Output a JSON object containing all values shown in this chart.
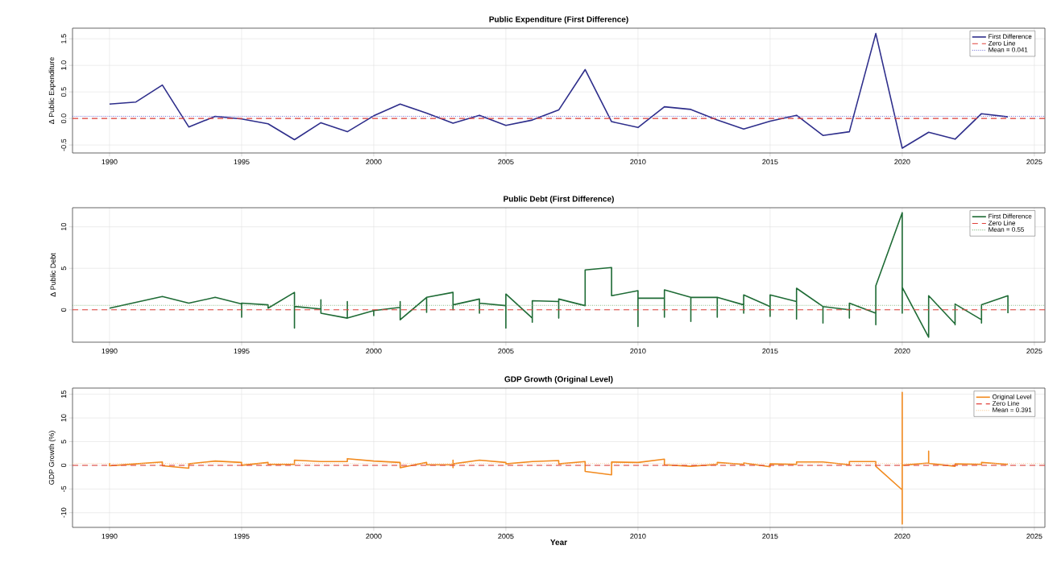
{
  "chart_data": [
    {
      "type": "line",
      "title": "Public Expenditure (First Difference)",
      "ylabel": "Δ Public Expenditure",
      "grid": true,
      "legend": "top right",
      "xlim": [
        1988.6,
        2025.4
      ],
      "ylim": [
        -0.65,
        1.7
      ],
      "xticks": [
        1990,
        1995,
        2000,
        2005,
        2010,
        2015,
        2020,
        2025
      ],
      "yticks": [
        -0.5,
        {
          "value": 0,
          "label": "0.0"
        },
        0.5,
        {
          "value": 1,
          "label": "1.0"
        },
        1.5
      ],
      "series": [
        {
          "name": "First Difference",
          "color": "#2e2e8b",
          "x": [
            1990,
            1991,
            1992,
            1993,
            1994,
            1995,
            1996,
            1997,
            1998,
            1999,
            2000,
            2001,
            2002,
            2003,
            2004,
            2005,
            2006,
            2007,
            2008,
            2009,
            2010,
            2011,
            2012,
            2013,
            2014,
            2015,
            2016,
            2017,
            2018,
            2019,
            2020,
            2021,
            2022,
            2023,
            2024
          ],
          "values": [
            0.27,
            0.31,
            0.63,
            -0.16,
            0.04,
            -0.01,
            -0.1,
            -0.4,
            -0.08,
            -0.25,
            0.05,
            0.27,
            0.1,
            -0.09,
            0.06,
            -0.13,
            -0.03,
            0.16,
            0.92,
            -0.06,
            -0.17,
            0.22,
            0.17,
            -0.03,
            -0.2,
            -0.05,
            0.06,
            -0.32,
            -0.25,
            1.6,
            -0.56,
            -0.26,
            -0.39,
            0.09,
            0.03
          ]
        }
      ],
      "ref_lines": [
        {
          "axis": "y",
          "value": 0,
          "label": "Zero Line",
          "color": "#e0403a",
          "line_style": "dashed"
        },
        {
          "axis": "y",
          "value": 0.041,
          "label": "Mean = 0.041",
          "color": "#5a5ad0",
          "line_style": "dotted"
        }
      ]
    },
    {
      "type": "line",
      "title": "Public Debt (First Difference)",
      "ylabel": "Δ Public Debt",
      "grid": true,
      "legend": "top right",
      "xlim": [
        1988.6,
        2025.4
      ],
      "ylim": [
        -3.9,
        12.3
      ],
      "xticks": [
        1990,
        1995,
        2000,
        2005,
        2010,
        2015,
        2020,
        2025
      ],
      "yticks": [
        0,
        5,
        10
      ],
      "series": [
        {
          "name": "First Difference",
          "color": "#1e6b35",
          "x": [
            1990,
            1992,
            1993,
            1994,
            1995,
            1995,
            1995,
            1996,
            1996,
            1997,
            1997,
            1997,
            1998,
            1998,
            1998,
            1999,
            1999,
            1999,
            2000,
            2000,
            2000,
            2001,
            2001,
            2001,
            2002,
            2002,
            2002,
            2003,
            2003,
            2003,
            2004,
            2004,
            2004,
            2005,
            2005,
            2005,
            2006,
            2006,
            2006,
            2007,
            2007,
            2007,
            2008,
            2008,
            2009,
            2009,
            2010,
            2010,
            2010,
            2011,
            2011,
            2011,
            2012,
            2012,
            2012,
            2013,
            2013,
            2013,
            2014,
            2014,
            2014,
            2015,
            2015,
            2015,
            2016,
            2016,
            2016,
            2017,
            2017,
            2017,
            2018,
            2018,
            2018,
            2019,
            2019,
            2019,
            2020,
            2020,
            2020,
            2021,
            2021,
            2022,
            2022,
            2022,
            2023,
            2023,
            2023,
            2024,
            2024
          ],
          "values": [
            0.2,
            1.6,
            0.8,
            1.5,
            0.7,
            -0.9,
            0.8,
            0.6,
            0.2,
            2.1,
            -2.2,
            0.4,
            0.1,
            1.2,
            -0.4,
            -1.0,
            1.0,
            -1.0,
            -0.1,
            -0.7,
            -0.1,
            0.3,
            1.0,
            -1.2,
            1.5,
            -0.3,
            1.5,
            2.1,
            0.0,
            0.6,
            1.3,
            -0.4,
            0.8,
            0.5,
            -2.2,
            1.9,
            -1.0,
            -1.5,
            1.1,
            1.0,
            -1.0,
            1.3,
            0.5,
            4.8,
            5.1,
            1.7,
            2.3,
            -2.0,
            1.4,
            1.4,
            -0.9,
            2.4,
            1.5,
            -1.4,
            1.5,
            1.5,
            -0.9,
            1.5,
            0.6,
            -0.4,
            1.8,
            0.4,
            -0.8,
            1.8,
            1.0,
            -1.1,
            2.6,
            0.4,
            -1.6,
            0.4,
            0.0,
            -1.0,
            0.8,
            -0.4,
            -1.8,
            2.9,
            11.7,
            -0.4,
            2.7,
            -3.3,
            1.7,
            -1.7,
            -1.8,
            0.7,
            -1.2,
            -1.6,
            0.6,
            1.7,
            -0.4
          ]
        }
      ],
      "ref_lines": [
        {
          "axis": "y",
          "value": 0,
          "label": "Zero Line",
          "color": "#e0403a",
          "line_style": "dashed"
        },
        {
          "axis": "y",
          "value": 0.55,
          "label": "Mean = 0.55",
          "color": "#5aa05a",
          "line_style": "dotted"
        }
      ]
    },
    {
      "type": "line",
      "title": "GDP Growth (Original Level)",
      "xlabel": "Year",
      "ylabel": "GDP Growth (%)",
      "grid": true,
      "legend": "top right",
      "xlim": [
        1988.6,
        2025.4
      ],
      "ylim": [
        -13.1,
        16.3
      ],
      "xticks": [
        1990,
        1995,
        2000,
        2005,
        2010,
        2015,
        2020,
        2025
      ],
      "yticks": [
        -10,
        -5,
        0,
        5,
        10,
        15
      ],
      "series": [
        {
          "name": "Original Level",
          "color": "#f28a1e",
          "x": [
            1990,
            1990,
            1991,
            1992,
            1992,
            1993,
            1993,
            1994,
            1995,
            1995,
            1996,
            1996,
            1997,
            1997,
            1998,
            1999,
            1999,
            2000,
            2001,
            2001,
            2002,
            2002,
            2003,
            2003,
            2003,
            2003,
            2004,
            2005,
            2005,
            2006,
            2007,
            2007,
            2008,
            2008,
            2009,
            2009,
            2010,
            2011,
            2011,
            2012,
            2013,
            2013,
            2014,
            2014,
            2015,
            2015,
            2016,
            2016,
            2017,
            2018,
            2018,
            2019,
            2019,
            2020,
            2020,
            2020,
            2020,
            2021,
            2021,
            2021,
            2022,
            2022,
            2023,
            2023,
            2024
          ],
          "values": [
            0.5,
            -0.1,
            0.3,
            0.7,
            -0.1,
            -0.6,
            0.3,
            0.9,
            0.6,
            0.0,
            0.6,
            0.2,
            0.2,
            1.1,
            0.8,
            0.8,
            1.4,
            0.9,
            0.6,
            -0.5,
            0.6,
            0.1,
            0.1,
            1.1,
            -0.5,
            0.3,
            1.1,
            0.6,
            0.3,
            0.8,
            1.0,
            0.3,
            0.8,
            -1.3,
            -2.0,
            0.7,
            0.6,
            1.3,
            0.1,
            -0.2,
            0.2,
            0.6,
            0.2,
            0.5,
            -0.3,
            0.3,
            0.2,
            0.7,
            0.7,
            0.1,
            0.8,
            0.8,
            -0.2,
            -5.2,
            15.4,
            -12.4,
            0.0,
            0.5,
            3.0,
            0.4,
            -0.2,
            0.3,
            0.2,
            0.6,
            0.2
          ]
        }
      ],
      "ref_lines": [
        {
          "axis": "y",
          "value": 0,
          "label": "Zero Line",
          "color": "#e0403a",
          "line_style": "dashed"
        },
        {
          "axis": "y",
          "value": 0.391,
          "label": "Mean = 0.391",
          "color": "#f5b870",
          "line_style": "dotted"
        }
      ]
    }
  ]
}
